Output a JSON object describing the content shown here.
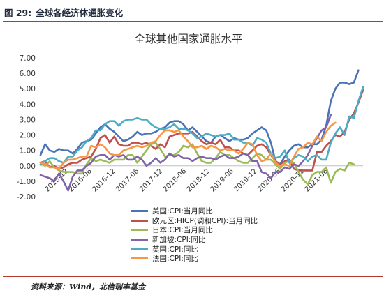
{
  "figure": {
    "number": "图 29:",
    "caption": "全球各经济体通胀变化",
    "source": "资料来源：Wind，北信瑞丰基金"
  },
  "chart_data": {
    "type": "line",
    "title": "全球其他国家通胀水平",
    "ylim": [
      -2,
      7
    ],
    "yticks": [
      "7.00",
      "6.00",
      "5.00",
      "4.00",
      "3.00",
      "2.00",
      "1.00",
      "0.00",
      "-1.00",
      "-2.00"
    ],
    "xticks": [
      "2015-12",
      "2016-06",
      "2016-12",
      "2017-06",
      "2017-12",
      "2018-06",
      "2018-12",
      "2019-06",
      "2019-12",
      "2020-06",
      "2020-12",
      "2021-06"
    ],
    "grid": false,
    "legend_position": "bottom",
    "series": [
      {
        "name": "美国:CPI:当月同比",
        "color": "#4a72b6",
        "values": [
          0.7,
          1.4,
          1.0,
          0.9,
          1.1,
          1.0,
          1.0,
          0.8,
          1.1,
          1.5,
          1.6,
          1.7,
          2.1,
          2.5,
          2.7,
          2.4,
          2.2,
          1.9,
          1.6,
          1.7,
          1.9,
          2.2,
          2.0,
          2.1,
          2.1,
          2.2,
          2.4,
          2.5,
          2.8,
          2.9,
          2.9,
          2.7,
          2.3,
          2.5,
          2.2,
          1.9,
          1.6,
          1.5,
          1.9,
          2.0,
          1.8,
          1.6,
          1.8,
          1.7,
          1.7,
          1.8,
          2.1,
          2.3,
          2.5,
          2.3,
          1.5,
          0.3,
          0.1,
          0.6,
          1.0,
          1.3,
          1.4,
          1.2,
          1.2,
          1.4,
          1.4,
          1.7,
          2.6,
          4.2,
          5.0,
          5.4,
          5.4,
          5.3,
          5.4,
          6.2
        ]
      },
      {
        "name": "欧元区:HICP(调和CPI):当月同比",
        "color": "#c0504d",
        "values": [
          0.2,
          0.3,
          -0.1,
          0.0,
          -0.2,
          -0.1,
          0.1,
          0.2,
          0.2,
          0.4,
          0.5,
          0.6,
          1.1,
          1.8,
          2.0,
          1.5,
          1.9,
          1.4,
          1.3,
          1.3,
          1.5,
          1.5,
          1.4,
          1.5,
          1.3,
          1.1,
          1.4,
          1.2,
          1.9,
          2.0,
          2.1,
          2.1,
          2.1,
          2.2,
          1.9,
          1.6,
          1.4,
          1.5,
          1.4,
          1.7,
          1.2,
          1.2,
          1.0,
          1.0,
          0.8,
          0.7,
          1.0,
          1.3,
          1.4,
          1.2,
          0.7,
          0.3,
          0.1,
          0.3,
          0.4,
          -0.2,
          -0.3,
          -0.3,
          -0.3,
          -0.3,
          0.9,
          0.9,
          1.3,
          1.6,
          2.0,
          1.9,
          2.2,
          3.0,
          3.4,
          4.1,
          4.9
        ]
      },
      {
        "name": "日本:CPI:当月同比",
        "color": "#9bbb59",
        "values": [
          0.2,
          0.0,
          0.3,
          -0.1,
          -0.3,
          -0.4,
          -0.4,
          -0.4,
          -0.5,
          -0.5,
          0.1,
          0.5,
          0.3,
          0.4,
          0.3,
          0.2,
          0.4,
          0.4,
          0.4,
          0.7,
          0.7,
          0.2,
          0.6,
          1.0,
          1.4,
          1.5,
          1.1,
          0.6,
          0.7,
          0.7,
          0.9,
          1.3,
          1.2,
          1.4,
          0.8,
          0.3,
          0.2,
          0.2,
          0.5,
          0.9,
          0.7,
          0.7,
          0.5,
          0.3,
          0.2,
          0.2,
          0.5,
          0.8,
          0.7,
          0.4,
          0.4,
          0.1,
          -0.2,
          0.2,
          0.3,
          0.2,
          -0.4,
          -0.9,
          -1.2,
          -0.6,
          -0.4,
          -0.4,
          -0.1,
          -1.1,
          -0.4,
          -0.2,
          -0.3,
          0.2,
          0.1
        ]
      },
      {
        "name": "新加坡:CPI:同比",
        "color": "#7f65a8",
        "values": [
          -0.6,
          -0.7,
          -0.8,
          -1.0,
          -0.5,
          -1.0,
          -1.6,
          -0.7,
          -0.3,
          -0.3,
          0.0,
          0.2,
          0.6,
          0.7,
          0.7,
          0.4,
          0.7,
          0.6,
          0.7,
          0.4,
          0.4,
          0.6,
          0.4,
          0.0,
          0.2,
          0.5,
          0.2,
          0.4,
          0.8,
          0.6,
          0.7,
          0.5,
          0.5,
          0.3,
          0.5,
          0.6,
          0.5,
          0.5,
          0.4,
          0.6,
          0.7,
          0.5,
          0.5,
          0.6,
          0.8,
          0.7,
          0.3,
          0.3,
          -0.4,
          -0.5,
          -0.8,
          -0.4,
          -0.4,
          -0.1,
          -0.2,
          0.1,
          0.0,
          0.3,
          0.7,
          1.3,
          1.8,
          2.3,
          2.5,
          3.3
        ]
      },
      {
        "name": "英国:CPI:同比",
        "color": "#4bacc6",
        "values": [
          0.1,
          0.3,
          0.5,
          0.5,
          0.3,
          0.2,
          0.6,
          0.6,
          1.0,
          1.2,
          1.6,
          1.8,
          2.3,
          2.3,
          2.7,
          2.9,
          2.9,
          2.6,
          2.9,
          3.0,
          3.0,
          3.1,
          3.0,
          3.0,
          2.7,
          2.5,
          2.4,
          2.4,
          2.5,
          2.7,
          2.4,
          2.4,
          2.3,
          2.1,
          1.8,
          1.9,
          2.1,
          2.0,
          1.9,
          2.0,
          2.0,
          2.1,
          1.7,
          1.7,
          1.5,
          1.5,
          1.3,
          1.8,
          1.7,
          1.5,
          0.8,
          0.5,
          0.6,
          1.0,
          0.2,
          0.5,
          0.7,
          0.6,
          0.3,
          0.6,
          0.7,
          0.4,
          0.4,
          1.5,
          2.1,
          2.5,
          2.0,
          3.2,
          3.1,
          4.2,
          5.1
        ]
      },
      {
        "name": "法国:CPI:同比",
        "color": "#f79646",
        "values": [
          0.2,
          0.1,
          -0.1,
          -0.1,
          -0.2,
          0.2,
          0.4,
          0.4,
          0.5,
          0.6,
          0.6,
          1.3,
          1.2,
          1.4,
          1.2,
          0.8,
          0.7,
          0.7,
          1.0,
          1.1,
          1.2,
          1.3,
          1.2,
          1.3,
          1.5,
          1.6,
          2.0,
          2.3,
          2.3,
          2.2,
          2.3,
          1.9,
          1.6,
          1.2,
          1.2,
          1.3,
          1.1,
          1.3,
          1.2,
          1.0,
          1.1,
          1.0,
          1.0,
          0.8,
          1.1,
          1.5,
          1.4,
          0.7,
          0.3,
          0.4,
          0.8,
          0.2,
          0.0,
          0.1,
          0.0,
          0.6,
          1.1,
          1.2,
          1.5,
          1.4,
          1.9,
          1.6,
          2.2,
          2.6,
          2.8
        ]
      }
    ]
  }
}
